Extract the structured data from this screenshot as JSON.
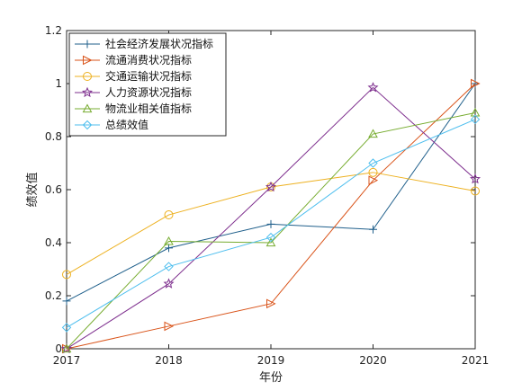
{
  "chart_data": {
    "type": "line",
    "title": "",
    "xlabel": "年份",
    "ylabel": "绩效值",
    "x": [
      2017,
      2018,
      2019,
      2020,
      2021
    ],
    "xlim": [
      2017,
      2021
    ],
    "ylim": [
      0,
      1.2
    ],
    "y_ticks": [
      0,
      0.2,
      0.4,
      0.6,
      0.8,
      1,
      1.2
    ],
    "x_tick_labels": [
      "2017",
      "2018",
      "2019",
      "2020",
      "2021"
    ],
    "y_tick_labels": [
      "0",
      "0.2",
      "0.4",
      "0.6",
      "0.8",
      "1",
      "1.2"
    ],
    "grid": false,
    "legend_position": "top-left",
    "series": [
      {
        "name": "社会经济发展状况指标",
        "color": "#1f5f8b",
        "marker": "plus",
        "values": [
          0.18,
          0.38,
          0.47,
          0.45,
          1.0
        ]
      },
      {
        "name": "流通消费状况指标",
        "color": "#d95319",
        "marker": "triangle-right",
        "values": [
          0.0,
          0.085,
          0.17,
          0.635,
          1.0
        ]
      },
      {
        "name": "交通运输状况指标",
        "color": "#edb120",
        "marker": "circle",
        "values": [
          0.28,
          0.505,
          0.61,
          0.665,
          0.595
        ]
      },
      {
        "name": "人力资源状况指标",
        "color": "#7e2f8e",
        "marker": "star",
        "values": [
          0.0,
          0.245,
          0.61,
          0.985,
          0.64
        ]
      },
      {
        "name": "物流业相关值指标",
        "color": "#77ac30",
        "marker": "triangle-up",
        "values": [
          0.0,
          0.405,
          0.4,
          0.81,
          0.89
        ]
      },
      {
        "name": "总绩效值",
        "color": "#4dbeee",
        "marker": "diamond",
        "values": [
          0.08,
          0.31,
          0.42,
          0.7,
          0.865
        ]
      }
    ]
  }
}
